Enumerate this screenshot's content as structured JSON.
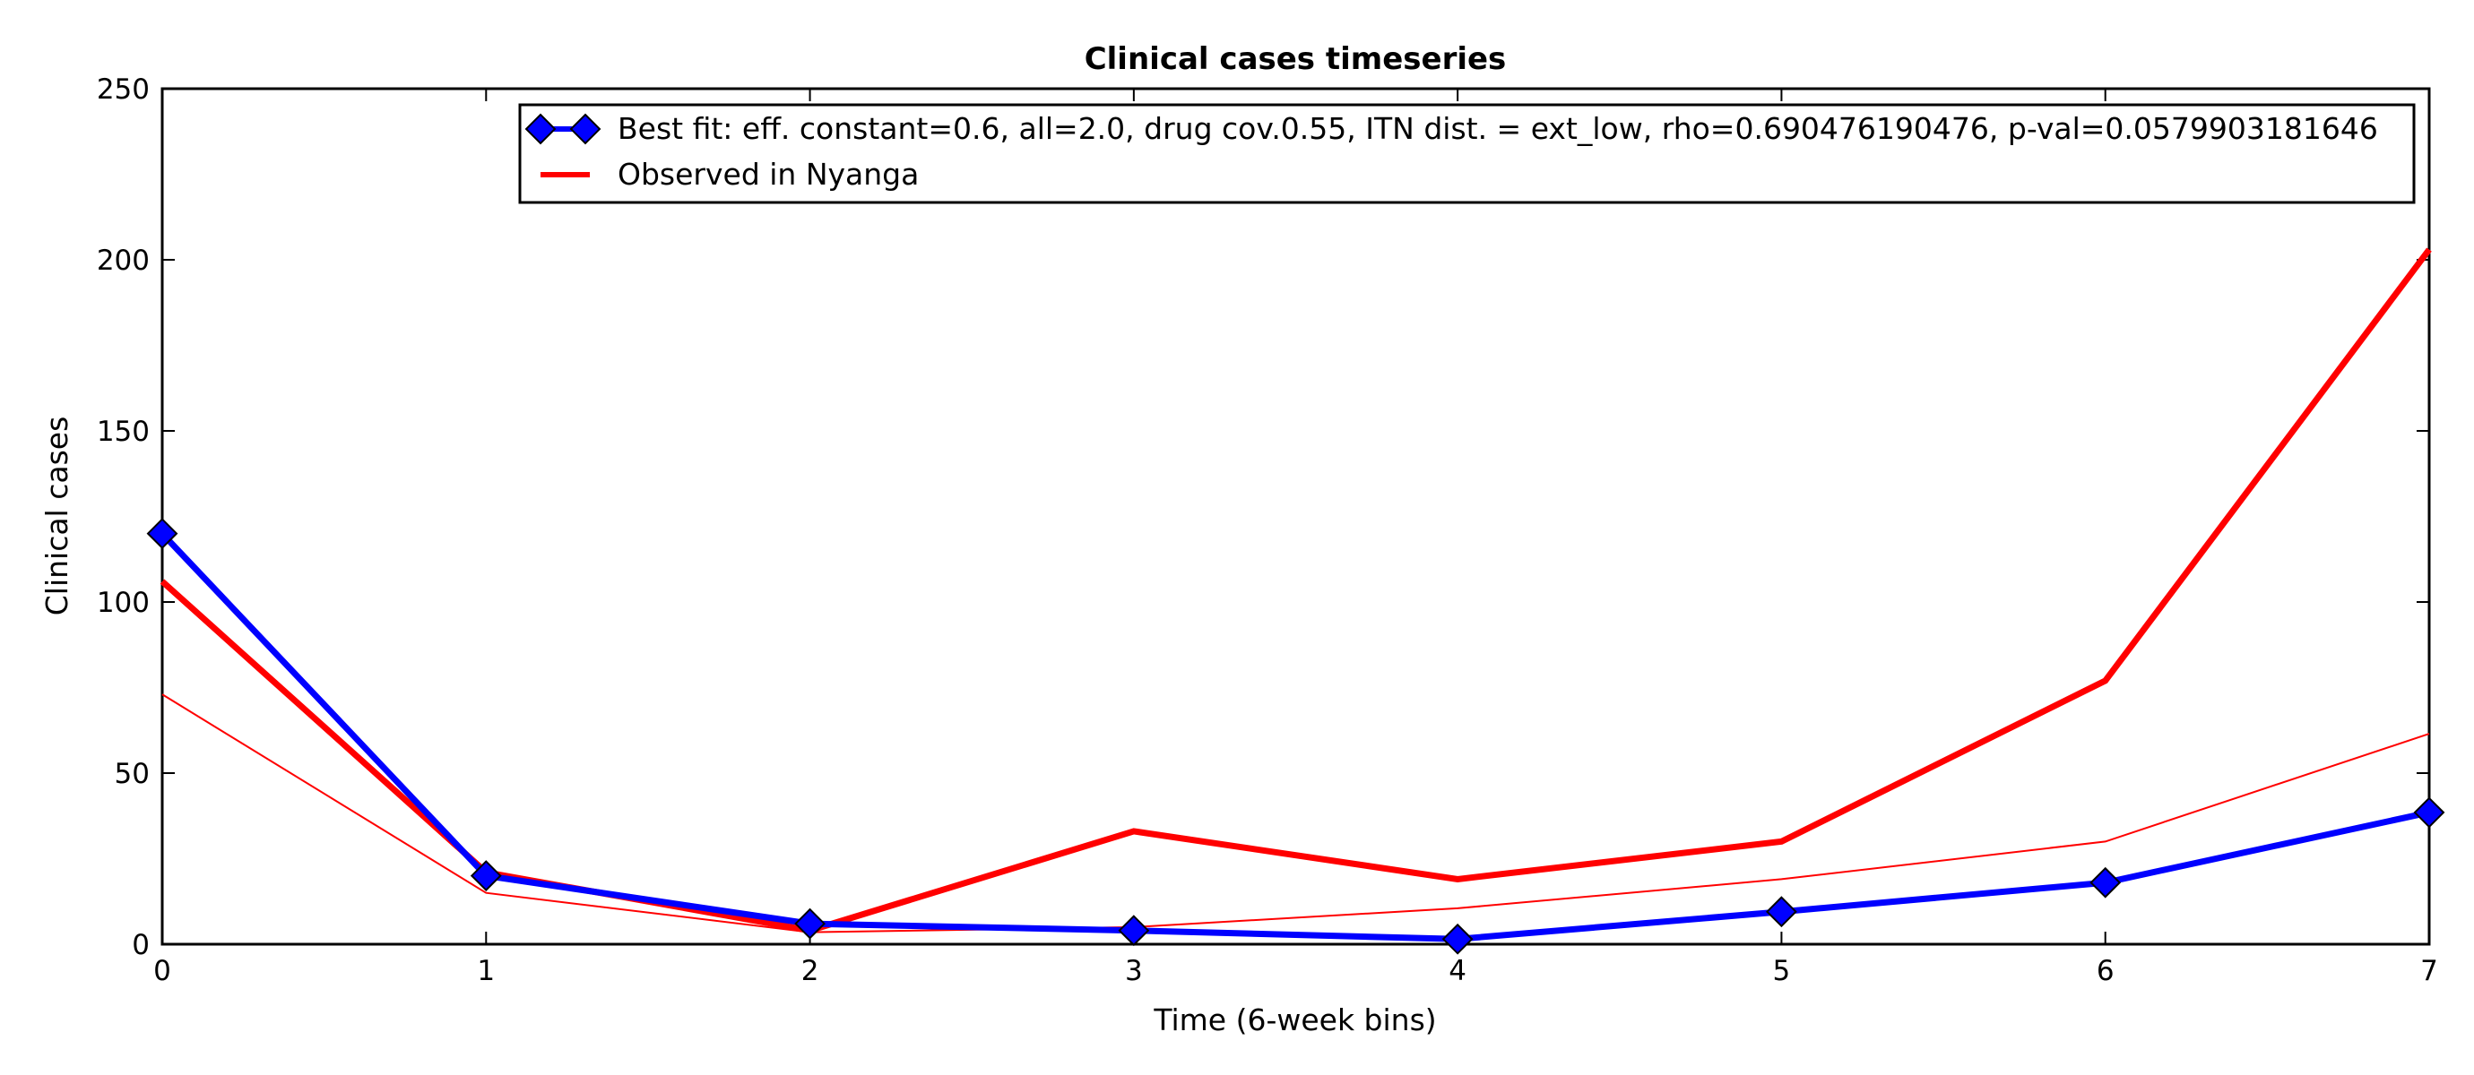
{
  "chart_data": {
    "type": "line",
    "title": "Clinical cases timeseries",
    "xlabel": "Time (6-week bins)",
    "ylabel": "Clinical cases",
    "xlim": [
      0,
      7
    ],
    "ylim": [
      0,
      250
    ],
    "x_ticks": [
      "0",
      "1",
      "2",
      "3",
      "4",
      "5",
      "6",
      "7"
    ],
    "y_ticks": [
      "0",
      "50",
      "100",
      "150",
      "200",
      "250"
    ],
    "grid": false,
    "legend_position": "top-right",
    "x": [
      0,
      1,
      2,
      3,
      4,
      5,
      6,
      7
    ],
    "series": [
      {
        "name": "Best fit: eff. constant=0.6, all=2.0, drug cov.0.55, ITN dist. = ext_low, rho=0.690476190476, p-val=0.0579903181646",
        "values": [
          120,
          20,
          6,
          4,
          1.5,
          9.5,
          18,
          38.5
        ],
        "color": "#0000ff",
        "marker": "diamond",
        "line": "thick"
      },
      {
        "name": "Observed in Nyanga",
        "values": [
          106,
          21,
          4,
          33,
          19,
          30,
          77,
          203
        ],
        "color": "#ff0000",
        "marker": "none",
        "line": "thick"
      },
      {
        "values": [
          73,
          15,
          3.5,
          5,
          10.5,
          19,
          30,
          61.5
        ],
        "color": "#ff0000",
        "marker": "none",
        "line": "thin"
      }
    ]
  }
}
